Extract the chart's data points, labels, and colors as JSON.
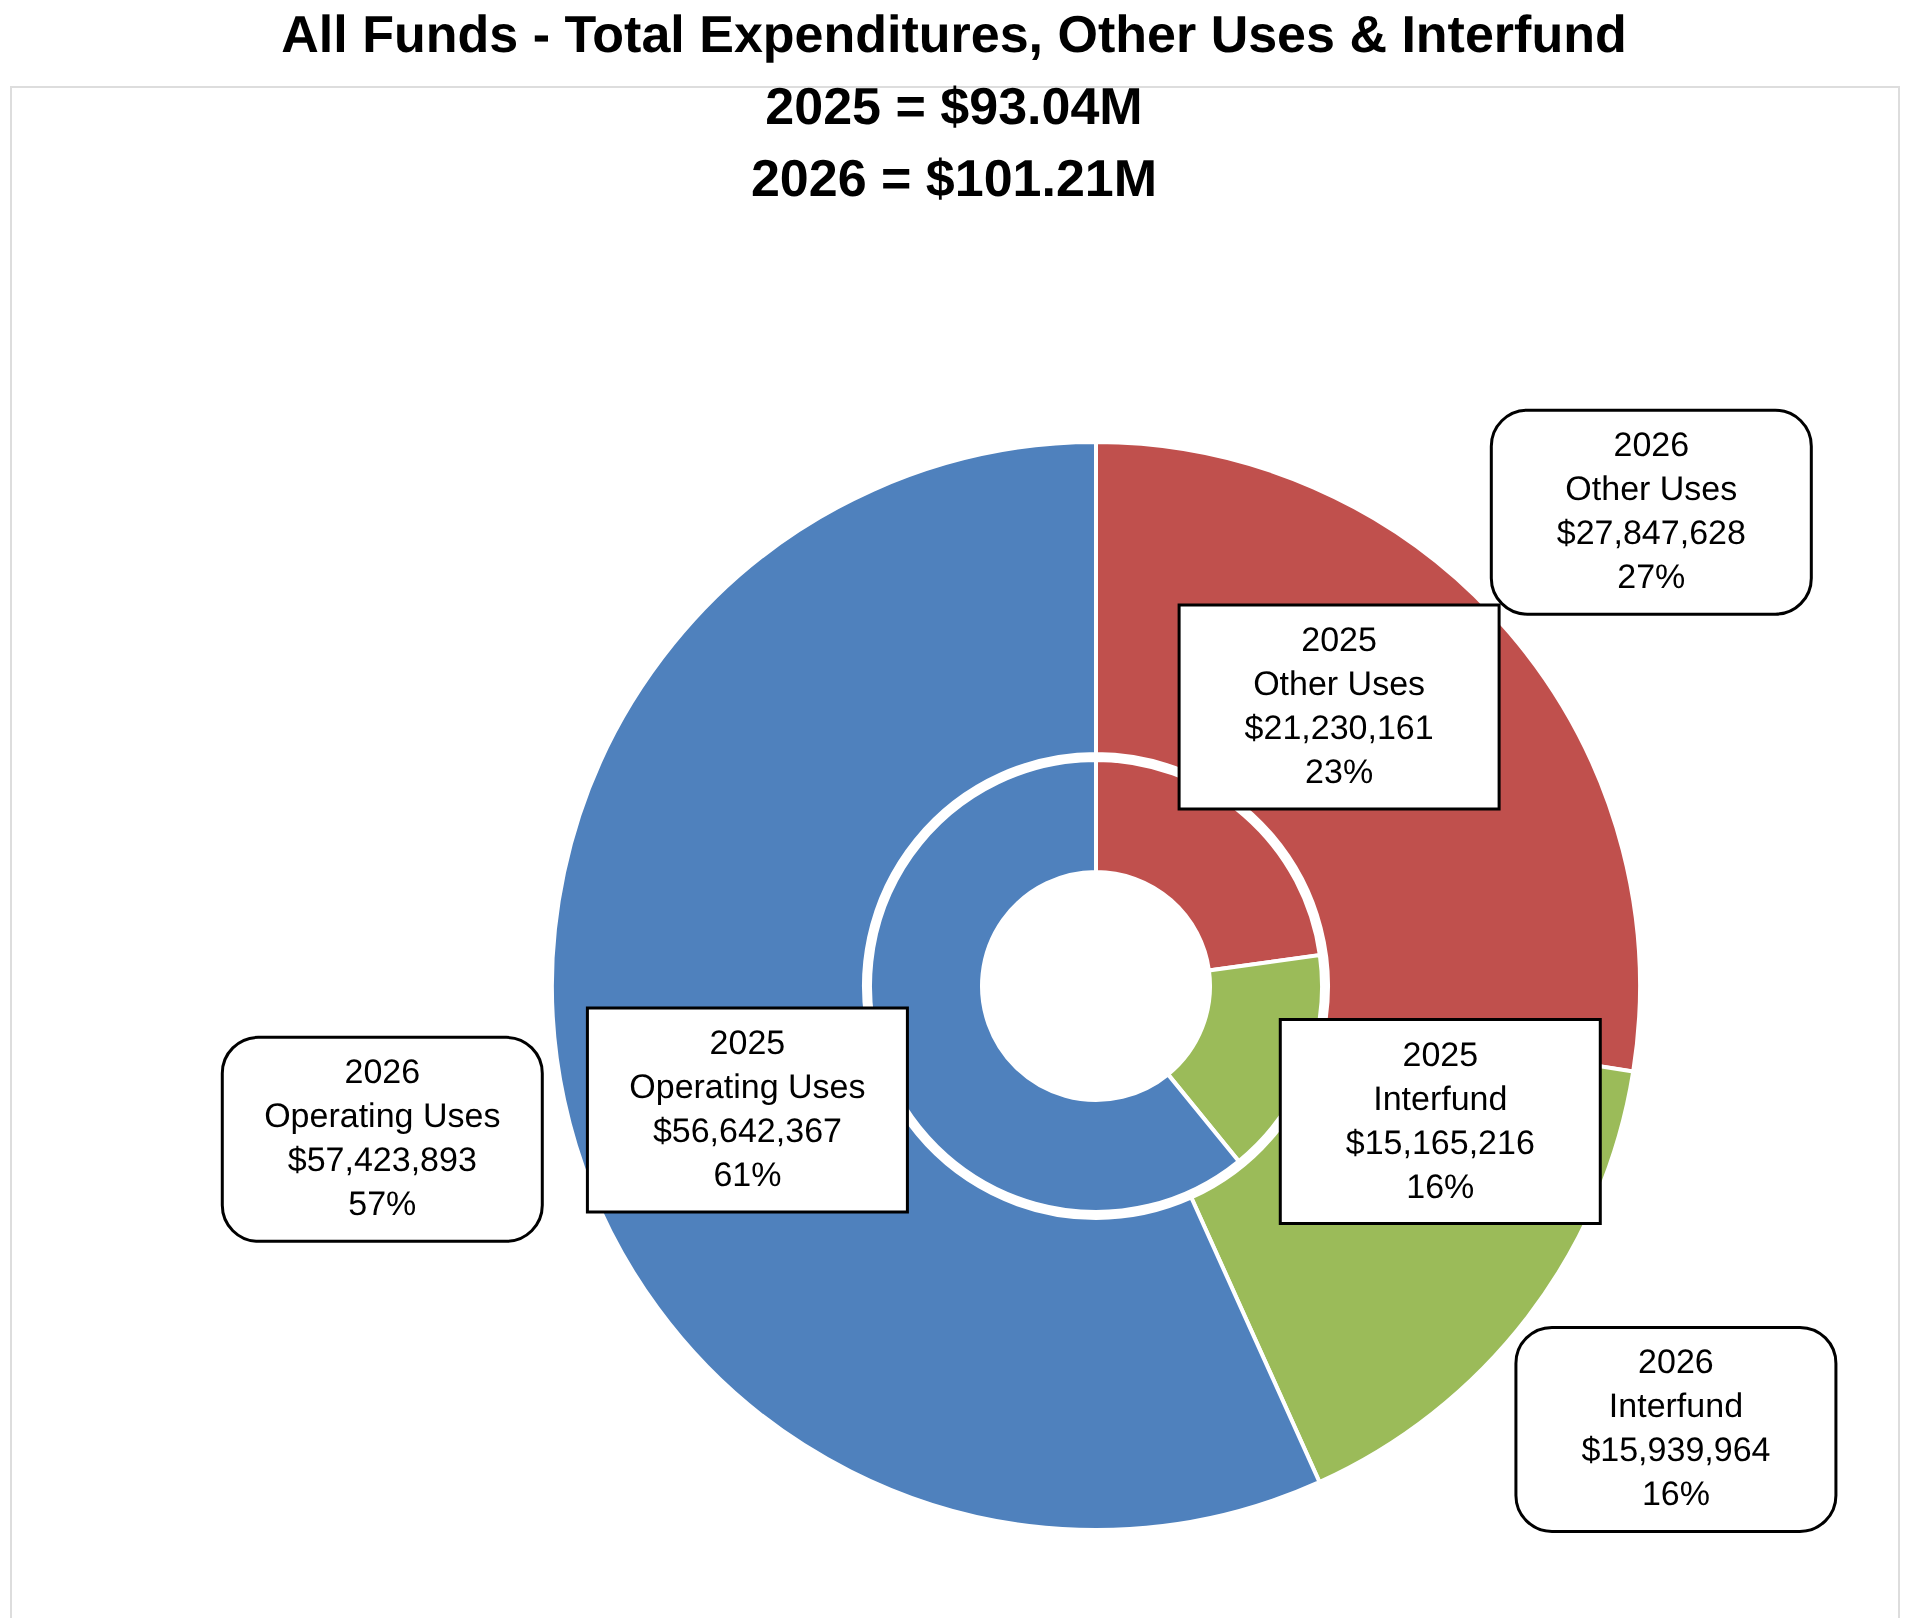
{
  "chart_data": {
    "type": "donut",
    "title": [
      "All Funds - Total Expenditures, Other Uses & Interfund",
      "2025 = $93.04M",
      "2026 = $101.21M"
    ],
    "categories": [
      "Other Uses",
      "Interfund",
      "Operating Uses"
    ],
    "colors": [
      "#c0504d",
      "#9bbb59",
      "#4f81bd"
    ],
    "series": [
      {
        "name": "2025",
        "values": [
          21230161,
          15165216,
          56642367
        ],
        "value_labels": [
          "$21,230,161\n23%",
          "$15,165,216\n16%",
          "$56,642,367\n61%"
        ]
      },
      {
        "name": "2026",
        "values": [
          27847628,
          15939964,
          57423893
        ],
        "value_labels": [
          "$27,847,628\n27%",
          "$15,939,964\n16%",
          "$57,423,893\n57%"
        ]
      }
    ],
    "legend": false
  }
}
